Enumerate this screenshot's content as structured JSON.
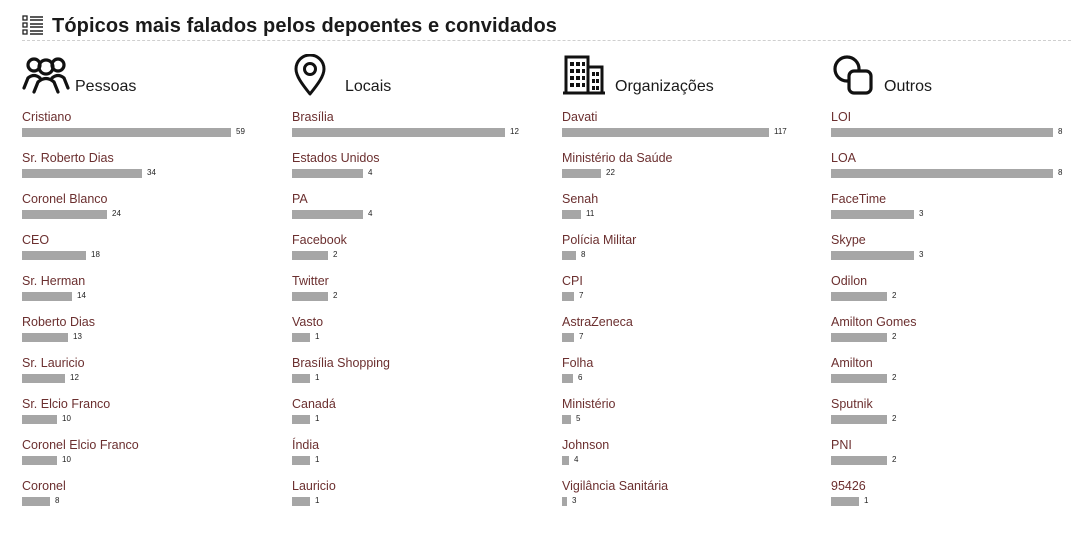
{
  "header": {
    "title": "Tópicos mais falados pelos depoentes e convidados",
    "icon": "list-icon"
  },
  "chart_data": [
    {
      "type": "bar",
      "title": "Pessoas",
      "icon": "people-icon",
      "categories": [
        "Cristiano",
        "Sr. Roberto Dias",
        "Coronel Blanco",
        "CEO",
        "Sr. Herman",
        "Roberto Dias",
        "Sr. Lauricio",
        "Sr. Elcio Franco",
        "Coronel Elcio Franco",
        "Coronel"
      ],
      "values": [
        59,
        34,
        24,
        18,
        14,
        13,
        12,
        10,
        10,
        8
      ]
    },
    {
      "type": "bar",
      "title": "Locais",
      "icon": "location-pin-icon",
      "categories": [
        "Brasília",
        "Estados Unidos",
        "PA",
        "Facebook",
        "Twitter",
        "Vasto",
        "Brasília Shopping",
        "Canadá",
        "Índia",
        "Lauricio"
      ],
      "values": [
        12,
        4,
        4,
        2,
        2,
        1,
        1,
        1,
        1,
        1
      ]
    },
    {
      "type": "bar",
      "title": "Organizações",
      "icon": "building-icon",
      "categories": [
        "Davati",
        "Ministério da Saúde",
        "Senah",
        "Polícia Militar",
        "CPI",
        "AstraZeneca",
        "Folha",
        "Ministério",
        "Johnson",
        "Vigilância Sanitária"
      ],
      "values": [
        117,
        22,
        11,
        8,
        7,
        7,
        6,
        5,
        4,
        3
      ]
    },
    {
      "type": "bar",
      "title": "Outros",
      "icon": "shapes-icon",
      "categories": [
        "LOI",
        "LOA",
        "FaceTime",
        "Skype",
        "Odilon",
        "Amilton Gomes",
        "Amilton",
        "Sputnik",
        "PNI",
        "95426"
      ],
      "values": [
        8,
        8,
        3,
        3,
        2,
        2,
        2,
        2,
        2,
        1
      ]
    }
  ]
}
